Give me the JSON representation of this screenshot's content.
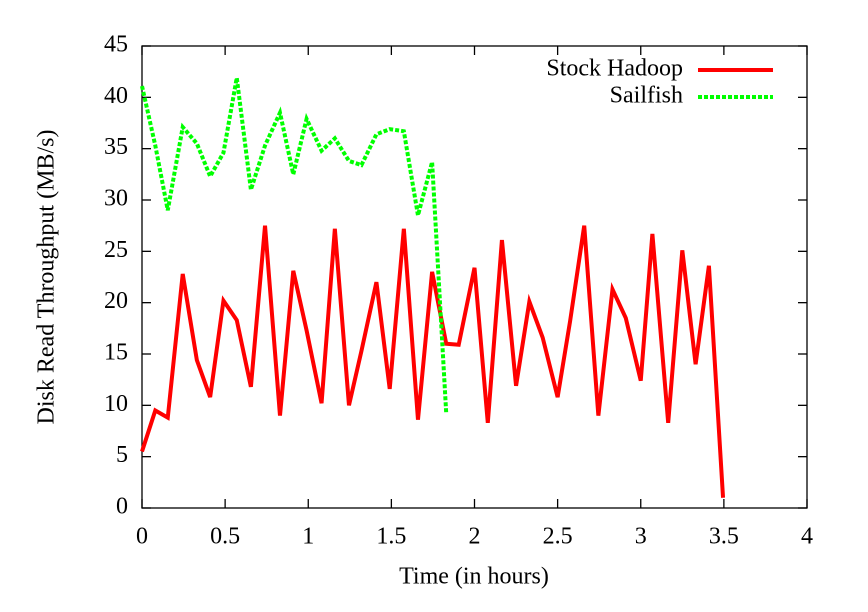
{
  "chart_data": {
    "type": "line",
    "xlabel": "Time (in hours)",
    "ylabel": "Disk Read Throughput (MB/s)",
    "xlim": [
      0,
      4
    ],
    "ylim": [
      0,
      45
    ],
    "xticks": [
      0,
      0.5,
      1,
      1.5,
      2,
      2.5,
      3,
      3.5,
      4
    ],
    "yticks": [
      0,
      5,
      10,
      15,
      20,
      25,
      30,
      35,
      40,
      45
    ],
    "legend": "top-right",
    "series": [
      {
        "name": "Stock Hadoop",
        "color": "#ff0000",
        "dash": "solid",
        "x": [
          0,
          0.08,
          0.155,
          0.245,
          0.33,
          0.41,
          0.49,
          0.57,
          0.655,
          0.74,
          0.83,
          0.91,
          0.99,
          1.08,
          1.16,
          1.245,
          1.32,
          1.41,
          1.49,
          1.575,
          1.66,
          1.745,
          1.83,
          1.905,
          2.0,
          2.08,
          2.165,
          2.25,
          2.33,
          2.41,
          2.5,
          2.575,
          2.66,
          2.745,
          2.83,
          2.91,
          3.0,
          3.07,
          3.165,
          3.25,
          3.33,
          3.41,
          3.495
        ],
        "values": [
          5.5,
          9.5,
          8.8,
          22.8,
          14.4,
          10.8,
          20.2,
          18.3,
          11.8,
          27.5,
          9.0,
          23.1,
          17.3,
          10.2,
          27.2,
          10.0,
          15.3,
          22.0,
          11.6,
          27.2,
          8.6,
          23.0,
          16.0,
          15.9,
          23.4,
          8.3,
          26.1,
          11.9,
          20.1,
          16.6,
          10.8,
          18.2,
          27.5,
          9.0,
          21.3,
          18.5,
          12.4,
          26.7,
          8.3,
          25.1,
          14.0,
          23.6,
          1.0
        ]
      },
      {
        "name": "Sailfish",
        "color": "#00ff00",
        "dash": "dotted",
        "x": [
          0,
          0.08,
          0.155,
          0.245,
          0.33,
          0.41,
          0.49,
          0.57,
          0.655,
          0.74,
          0.83,
          0.91,
          0.99,
          1.08,
          1.16,
          1.245,
          1.32,
          1.41,
          1.49,
          1.575,
          1.66,
          1.745,
          1.83
        ],
        "values": [
          41.1,
          35.3,
          29.0,
          37.1,
          35.5,
          32.3,
          34.6,
          41.9,
          31.0,
          35.3,
          38.5,
          32.5,
          37.9,
          34.8,
          36.0,
          33.8,
          33.4,
          36.4,
          36.9,
          36.7,
          28.5,
          33.7,
          9.2
        ]
      }
    ]
  }
}
